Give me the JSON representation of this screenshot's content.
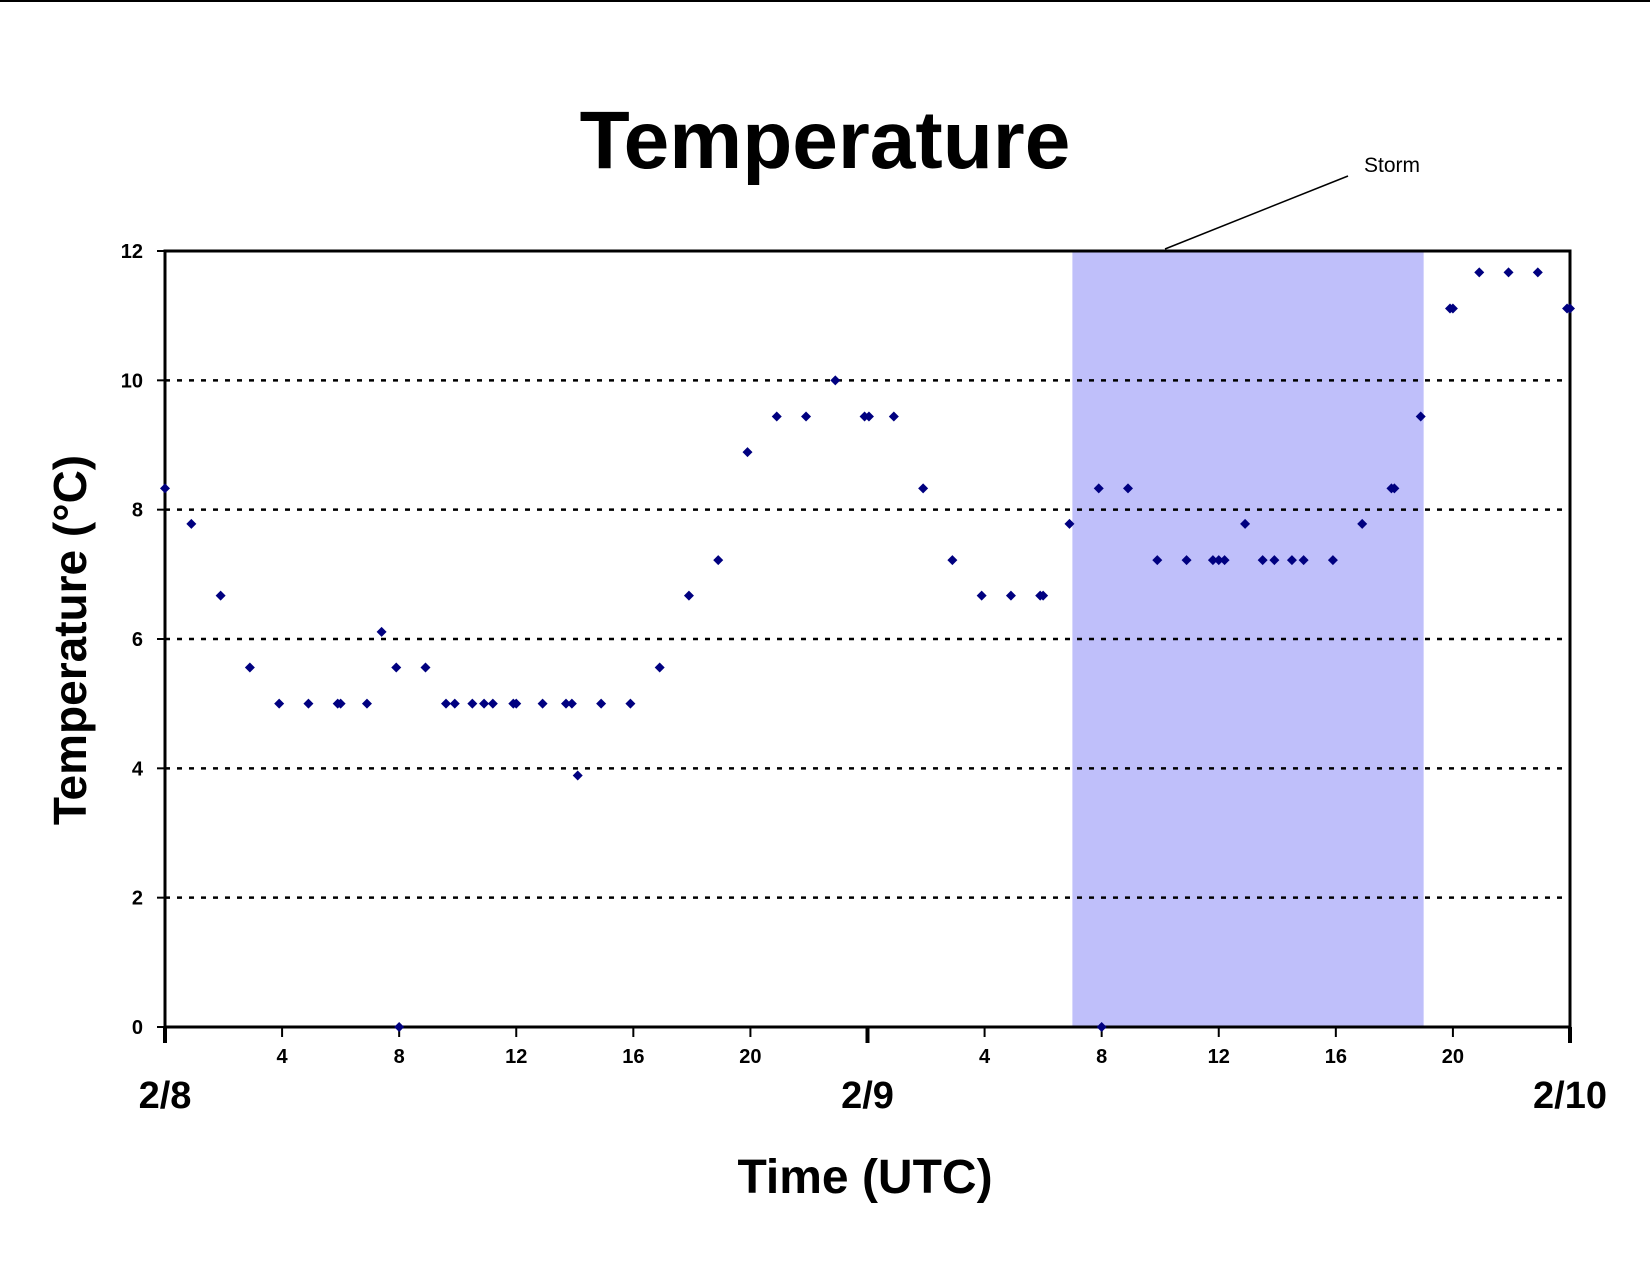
{
  "chart_data": {
    "type": "scatter",
    "title": "Temperature",
    "xlabel": "Time (UTC)",
    "ylabel": "Temperature (°C)",
    "ylim": [
      0,
      12
    ],
    "yticks": [
      "0",
      "2",
      "4",
      "6",
      "8",
      "10",
      "12"
    ],
    "grid": "horizontal dotted",
    "xrange_hours": [
      0,
      48
    ],
    "hour_tick_labels": [
      {
        "hour": 4,
        "label": "4"
      },
      {
        "hour": 8,
        "label": "8"
      },
      {
        "hour": 12,
        "label": "12"
      },
      {
        "hour": 16,
        "label": "16"
      },
      {
        "hour": 20,
        "label": "20"
      },
      {
        "hour": 28,
        "label": "4"
      },
      {
        "hour": 32,
        "label": "8"
      },
      {
        "hour": 36,
        "label": "12"
      },
      {
        "hour": 40,
        "label": "16"
      },
      {
        "hour": 44,
        "label": "20"
      }
    ],
    "date_labels": [
      {
        "hour": 0,
        "label": "2/8"
      },
      {
        "hour": 24,
        "label": "2/9"
      },
      {
        "hour": 48,
        "label": "2/10"
      }
    ],
    "shaded_region": {
      "label": "Storm",
      "start_hour": 31,
      "end_hour": 43,
      "color": "#bfbffa"
    },
    "marker_color": "#000080",
    "series": [
      {
        "points": [
          [
            0,
            8.33
          ],
          [
            0.9,
            7.78
          ],
          [
            1.9,
            6.67
          ],
          [
            2.9,
            5.56
          ],
          [
            3.9,
            5.0
          ],
          [
            4.9,
            5.0
          ],
          [
            5.9,
            5.0
          ],
          [
            6,
            5.0
          ],
          [
            6.9,
            5.0
          ],
          [
            7.4,
            6.11
          ],
          [
            7.9,
            5.56
          ],
          [
            8,
            0
          ],
          [
            8.9,
            5.56
          ],
          [
            9.6,
            5.0
          ],
          [
            9.9,
            5.0
          ],
          [
            10.5,
            5.0
          ],
          [
            10.9,
            5.0
          ],
          [
            11.2,
            5.0
          ],
          [
            11.9,
            5.0
          ],
          [
            12,
            5.0
          ],
          [
            12.9,
            5.0
          ],
          [
            13.7,
            5.0
          ],
          [
            13.9,
            5.0
          ],
          [
            14.1,
            3.89
          ],
          [
            14.9,
            5.0
          ],
          [
            15.9,
            5.0
          ],
          [
            16.9,
            5.56
          ],
          [
            17.9,
            6.67
          ],
          [
            18.9,
            7.22
          ],
          [
            19.9,
            8.89
          ],
          [
            20.9,
            9.44
          ],
          [
            21.9,
            9.44
          ],
          [
            22.9,
            10.0
          ],
          [
            23.9,
            9.44
          ],
          [
            24.05,
            9.44
          ],
          [
            24.9,
            9.44
          ],
          [
            25.9,
            8.33
          ],
          [
            26.9,
            7.22
          ],
          [
            27.9,
            6.67
          ],
          [
            28.9,
            6.67
          ],
          [
            29.9,
            6.67
          ],
          [
            30,
            6.67
          ],
          [
            30.9,
            7.78
          ],
          [
            31.9,
            8.33
          ],
          [
            32,
            0
          ],
          [
            32.9,
            8.33
          ],
          [
            33.9,
            7.22
          ],
          [
            34.9,
            7.22
          ],
          [
            35.8,
            7.22
          ],
          [
            36,
            7.22
          ],
          [
            36.2,
            7.22
          ],
          [
            36.9,
            7.78
          ],
          [
            37.5,
            7.22
          ],
          [
            37.9,
            7.22
          ],
          [
            38.5,
            7.22
          ],
          [
            38.9,
            7.22
          ],
          [
            39.9,
            7.22
          ],
          [
            40.9,
            7.78
          ],
          [
            41.9,
            8.33
          ],
          [
            42,
            8.33
          ],
          [
            42.9,
            9.44
          ],
          [
            43.9,
            11.11
          ],
          [
            44,
            11.11
          ],
          [
            44.9,
            11.67
          ],
          [
            45.9,
            11.67
          ],
          [
            46.9,
            11.67
          ],
          [
            47.9,
            11.11
          ],
          [
            48,
            11.11
          ]
        ]
      }
    ]
  }
}
